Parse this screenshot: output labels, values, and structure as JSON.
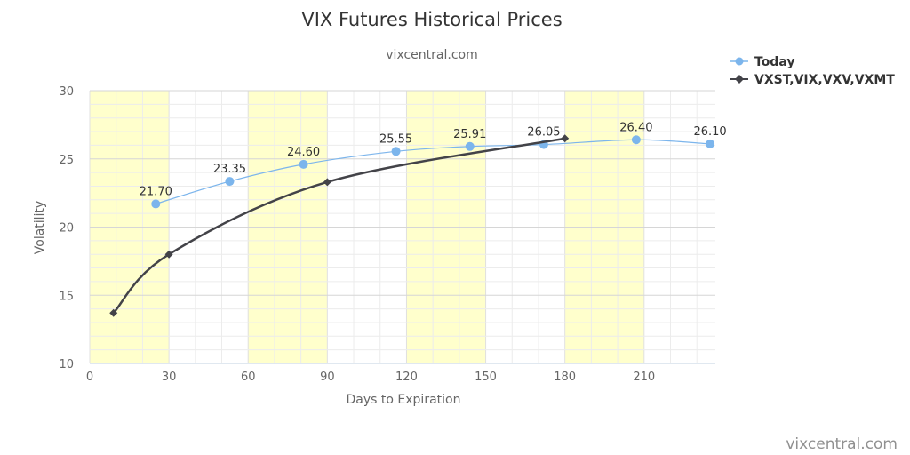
{
  "chart_data": {
    "type": "line",
    "title": "VIX Futures Historical Prices",
    "subtitle": "vixcentral.com",
    "xlabel": "Days to Expiration",
    "ylabel": "Volatility",
    "xlim": [
      0,
      237
    ],
    "ylim": [
      10,
      30
    ],
    "x_ticks": [
      0,
      30,
      60,
      90,
      120,
      150,
      180,
      210
    ],
    "y_ticks": [
      10,
      15,
      20,
      25,
      30
    ],
    "grid": true,
    "shaded_x_bands": [
      [
        0,
        30
      ],
      [
        60,
        90
      ],
      [
        120,
        150
      ],
      [
        180,
        210
      ]
    ],
    "legend_position": "top-right",
    "series": [
      {
        "name": "Today",
        "color": "#7cb5ec",
        "marker": "circle",
        "x": [
          25,
          53,
          81,
          116,
          144,
          172,
          207,
          235
        ],
        "y": [
          21.7,
          23.35,
          24.6,
          25.55,
          25.91,
          26.05,
          26.4,
          26.1
        ],
        "labels": [
          "21.70",
          "23.35",
          "24.60",
          "25.55",
          "25.91",
          "26.05",
          "26.40",
          "26.10"
        ]
      },
      {
        "name": "VXST,VIX,VXV,VXMT",
        "color": "#434348",
        "marker": "diamond",
        "x": [
          9,
          30,
          90,
          180
        ],
        "y": [
          13.7,
          18.0,
          23.3,
          26.5
        ]
      }
    ],
    "credits": "vixcentral.com"
  }
}
